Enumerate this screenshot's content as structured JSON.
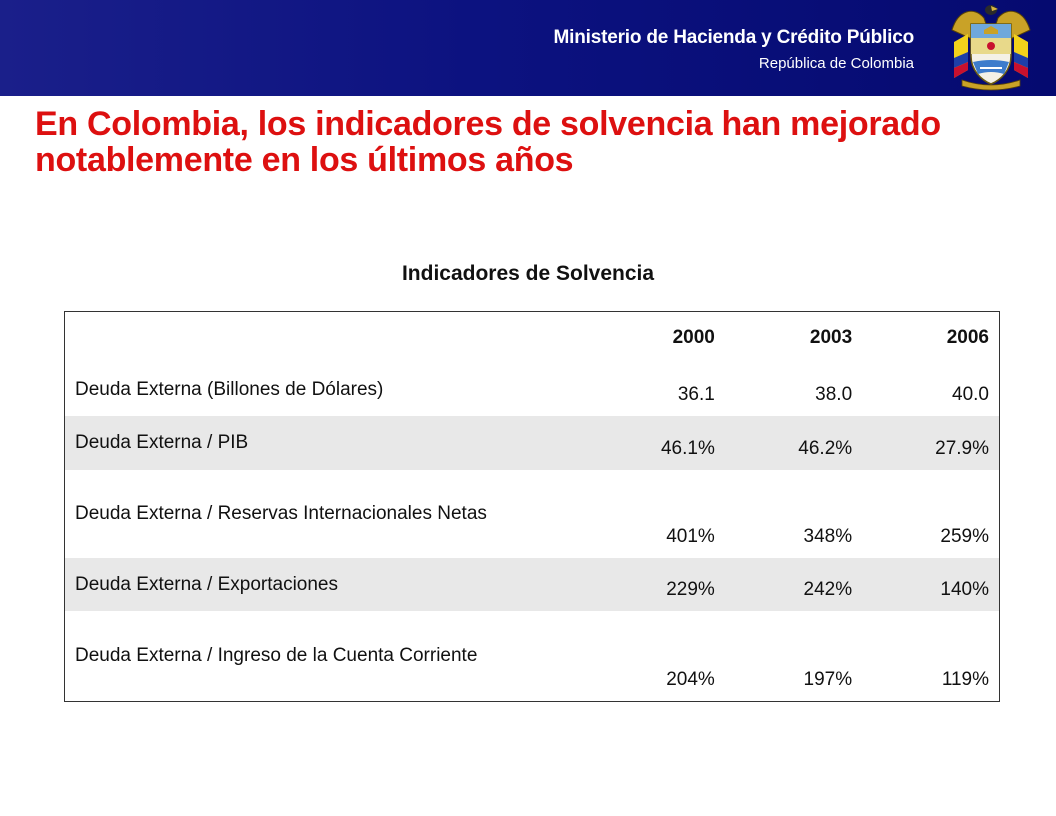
{
  "header": {
    "ministry": "Ministerio de Hacienda y Crédito Público",
    "republic": "República de Colombia",
    "crest_icon": "colombia-coat-of-arms-icon"
  },
  "title": "En Colombia, los indicadores de solvencia han mejorado notablemente en los últimos años",
  "table": {
    "title": "Indicadores de Solvencia",
    "columns": [
      "",
      "2000",
      "2003",
      "2006"
    ],
    "rows": [
      {
        "label": "Deuda Externa (Billones de Dólares)",
        "values": [
          "36.1",
          "38.0",
          "40.0"
        ]
      },
      {
        "label": "Deuda Externa / PIB",
        "values": [
          "46.1%",
          "46.2%",
          "27.9%"
        ]
      },
      {
        "label": "Deuda Externa / Reservas Internacionales Netas",
        "values": [
          "401%",
          "348%",
          "259%"
        ]
      },
      {
        "label": "Deuda Externa / Exportaciones",
        "values": [
          "229%",
          "242%",
          "140%"
        ]
      },
      {
        "label": "Deuda Externa / Ingreso de la Cuenta Corriente",
        "values": [
          "204%",
          "197%",
          "119%"
        ]
      }
    ]
  },
  "colors": {
    "header_bg": "#0c1280",
    "title_red": "#dd1010",
    "row_shade": "#e8e8e8"
  }
}
